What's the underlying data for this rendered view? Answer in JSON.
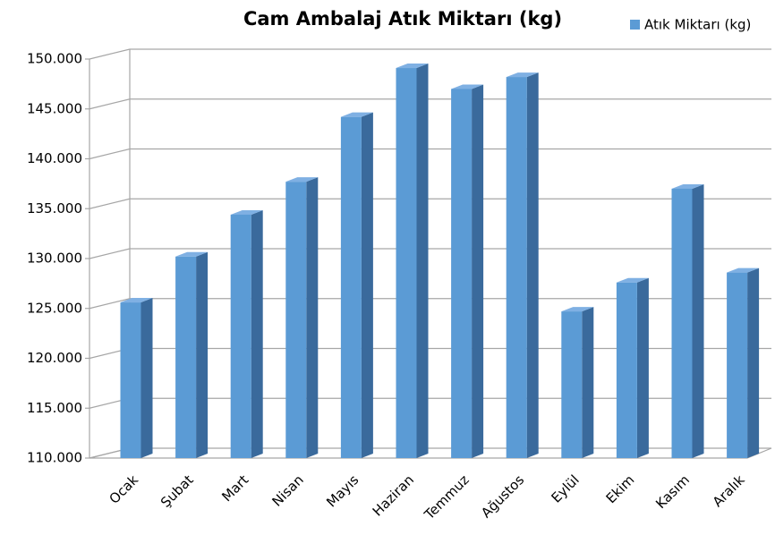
{
  "chart_data": {
    "type": "bar3d",
    "title": "Cam Ambalaj Atık Miktarı (kg)",
    "categories": [
      "Ocak",
      "Şubat",
      "Mart",
      "Nisan",
      "Mayıs",
      "Haziran",
      "Temmuz",
      "Ağustos",
      "Eylül",
      "Ekim",
      "Kasım",
      "Aralık"
    ],
    "series": [
      {
        "name": "Atık Miktarı (kg)",
        "color": "#5b9bd5",
        "values": [
          125600,
          130200,
          134400,
          137700,
          144200,
          149100,
          147000,
          148200,
          124700,
          127600,
          137000,
          128600
        ]
      }
    ],
    "ylim": [
      110000,
      150000
    ],
    "yticks": [
      {
        "value": 110000,
        "label": "110.000"
      },
      {
        "value": 115000,
        "label": "115.000"
      },
      {
        "value": 120000,
        "label": "120.000"
      },
      {
        "value": 125000,
        "label": "125.000"
      },
      {
        "value": 130000,
        "label": "130.000"
      },
      {
        "value": 135000,
        "label": "135.000"
      },
      {
        "value": 140000,
        "label": "140.000"
      },
      {
        "value": 145000,
        "label": "145.000"
      },
      {
        "value": 150000,
        "label": "150.000"
      }
    ],
    "grid": true,
    "legend": "top-right"
  }
}
